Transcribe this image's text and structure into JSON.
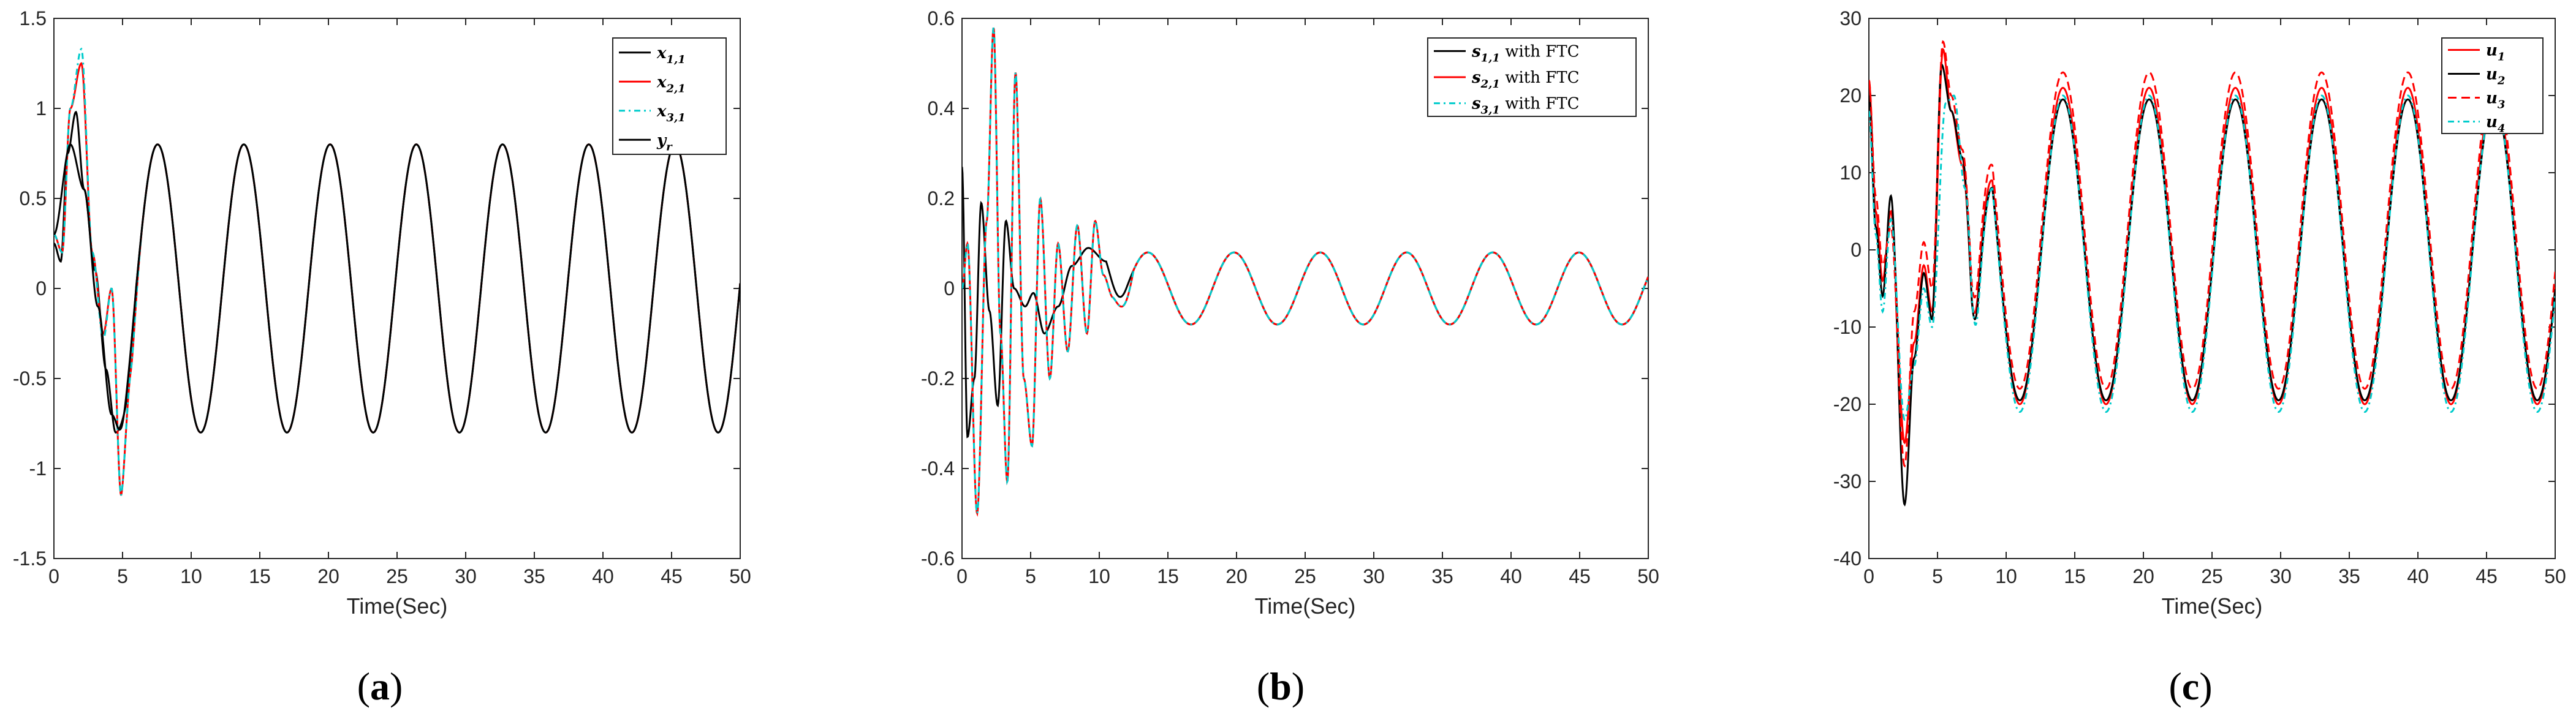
{
  "chart_data": [
    {
      "type": "line",
      "panel_label": "a",
      "xlabel": "Time(Sec)",
      "xlim": [
        0,
        50
      ],
      "ylim": [
        -1.5,
        1.5
      ],
      "xticks": [
        0,
        5,
        10,
        15,
        20,
        25,
        30,
        35,
        40,
        45,
        50
      ],
      "yticks": [
        -1.5,
        -1,
        -0.5,
        0,
        0.5,
        1,
        1.5
      ],
      "ytick_labels": [
        "-1.5",
        "-1",
        "-0.5",
        "0",
        "0.5",
        "1",
        "1.5"
      ],
      "legend_position": "top-right",
      "signal": {
        "kind": "sine",
        "amplitude": 0.8,
        "period": 6.283,
        "phase": 0.3,
        "decay": 0.7
      },
      "series": [
        {
          "name": "x",
          "sub": "1,1",
          "color": "#000000",
          "dash": "",
          "transient": [
            [
              0.0,
              0.25
            ],
            [
              0.5,
              0.15
            ],
            [
              1.0,
              0.75
            ],
            [
              1.6,
              0.98
            ],
            [
              2.2,
              0.55
            ],
            [
              3.0,
              0.1
            ],
            [
              3.8,
              -0.45
            ],
            [
              4.5,
              -0.8
            ],
            [
              5.2,
              -0.75
            ],
            [
              6.0,
              -0.2
            ]
          ]
        },
        {
          "name": "x",
          "sub": "2,1",
          "color": "#ff0000",
          "dash": "",
          "transient": [
            [
              0.0,
              0.3
            ],
            [
              0.6,
              0.2
            ],
            [
              1.2,
              1.0
            ],
            [
              2.0,
              1.25
            ],
            [
              2.8,
              0.2
            ],
            [
              3.6,
              -0.25
            ],
            [
              4.2,
              0.0
            ],
            [
              4.9,
              -1.15
            ],
            [
              5.6,
              -0.6
            ],
            [
              6.4,
              0.1
            ]
          ]
        },
        {
          "name": "x",
          "sub": "3,1",
          "color": "#00cccc",
          "dash": "10,6,3,6",
          "transient": [
            [
              0.0,
              0.3
            ],
            [
              0.6,
              0.2
            ],
            [
              1.2,
              1.0
            ],
            [
              2.0,
              1.33
            ],
            [
              2.8,
              0.2
            ],
            [
              3.6,
              -0.28
            ],
            [
              4.2,
              0.0
            ],
            [
              4.9,
              -1.15
            ],
            [
              5.6,
              -0.6
            ],
            [
              6.4,
              0.1
            ]
          ]
        },
        {
          "name": "y",
          "sub": "r",
          "color": "#000000",
          "dash": "",
          "transient": [
            [
              0.0,
              0.3
            ],
            [
              1.2,
              0.8
            ],
            [
              2.2,
              0.55
            ],
            [
              3.2,
              -0.1
            ],
            [
              4.2,
              -0.7
            ],
            [
              4.9,
              -0.8
            ],
            [
              6.0,
              -0.3
            ]
          ]
        }
      ]
    },
    {
      "type": "line",
      "panel_label": "b",
      "xlabel": "Time(Sec)",
      "xlim": [
        0,
        50
      ],
      "ylim": [
        -0.6,
        0.6
      ],
      "xticks": [
        0,
        5,
        10,
        15,
        20,
        25,
        30,
        35,
        40,
        45,
        50
      ],
      "yticks": [
        -0.6,
        -0.4,
        -0.2,
        0,
        0.2,
        0.4,
        0.6
      ],
      "ytick_labels": [
        "-0.6",
        "-0.4",
        "-0.2",
        "0",
        "0.2",
        "0.4",
        "0.6"
      ],
      "legend_position": "top-right",
      "signal": {
        "kind": "sine",
        "amplitude": 0.08,
        "period": 6.283,
        "phase": 0.6,
        "decay": 12.0
      },
      "series": [
        {
          "name": "s",
          "sub": "1,1",
          "suffix": " with FTC",
          "color": "#000000",
          "dash": "",
          "transient": [
            [
              0.0,
              0.27
            ],
            [
              0.4,
              -0.33
            ],
            [
              0.9,
              -0.2
            ],
            [
              1.4,
              0.19
            ],
            [
              2.0,
              -0.05
            ],
            [
              2.6,
              -0.26
            ],
            [
              3.2,
              0.15
            ],
            [
              3.8,
              0.0
            ],
            [
              4.6,
              -0.04
            ],
            [
              5.2,
              -0.01
            ],
            [
              6.0,
              -0.1
            ],
            [
              7.0,
              -0.04
            ],
            [
              8.0,
              0.05
            ],
            [
              9.2,
              0.09
            ],
            [
              10.5,
              0.06
            ],
            [
              12.0,
              0.0
            ]
          ]
        },
        {
          "name": "s",
          "sub": "2,1",
          "suffix": " with FTC",
          "color": "#ff0000",
          "dash": "",
          "transient": [
            [
              0.0,
              0.0
            ],
            [
              0.4,
              0.1
            ],
            [
              1.1,
              -0.5
            ],
            [
              1.8,
              0.15
            ],
            [
              2.3,
              0.58
            ],
            [
              2.8,
              -0.1
            ],
            [
              3.3,
              -0.43
            ],
            [
              3.9,
              0.48
            ],
            [
              4.5,
              -0.2
            ],
            [
              5.1,
              -0.35
            ],
            [
              5.7,
              0.2
            ],
            [
              6.4,
              -0.2
            ],
            [
              7.0,
              0.1
            ],
            [
              7.7,
              -0.14
            ],
            [
              8.4,
              0.14
            ],
            [
              9.1,
              -0.1
            ],
            [
              9.7,
              0.15
            ],
            [
              10.3,
              0.03
            ],
            [
              11.0,
              -0.02
            ],
            [
              12.5,
              -0.1
            ]
          ]
        },
        {
          "name": "s",
          "sub": "3,1",
          "suffix": " with FTC",
          "color": "#00cccc",
          "dash": "10,6,3,6",
          "transient": [
            [
              0.0,
              0.0
            ],
            [
              0.4,
              0.1
            ],
            [
              1.1,
              -0.5
            ],
            [
              1.8,
              0.15
            ],
            [
              2.3,
              0.58
            ],
            [
              2.8,
              -0.1
            ],
            [
              3.3,
              -0.43
            ],
            [
              3.9,
              0.48
            ],
            [
              4.5,
              -0.2
            ],
            [
              5.1,
              -0.35
            ],
            [
              5.7,
              0.2
            ],
            [
              6.4,
              -0.2
            ],
            [
              7.0,
              0.1
            ],
            [
              7.7,
              -0.14
            ],
            [
              8.4,
              0.14
            ],
            [
              9.1,
              -0.1
            ],
            [
              9.7,
              0.15
            ],
            [
              10.3,
              0.03
            ],
            [
              11.0,
              -0.02
            ],
            [
              12.5,
              -0.1
            ]
          ]
        }
      ]
    },
    {
      "type": "line",
      "panel_label": "c",
      "xlabel": "Time(Sec)",
      "xlim": [
        0,
        50
      ],
      "ylim": [
        -40,
        30
      ],
      "xticks": [
        0,
        5,
        10,
        15,
        20,
        25,
        30,
        35,
        40,
        45,
        50
      ],
      "yticks": [
        -40,
        -30,
        -20,
        -10,
        0,
        10,
        20,
        30
      ],
      "ytick_labels": [
        "-40",
        "-30",
        "-20",
        "-10",
        "0",
        "10",
        "20",
        "30"
      ],
      "legend_position": "top-right",
      "signal": {
        "kind": "sine",
        "amplitude": 19.5,
        "period": 6.283,
        "phase": 0.0,
        "decay": 8.0
      },
      "series": [
        {
          "name": "u",
          "sub": "1",
          "color": "#ff0000",
          "dash": "",
          "offset": 0.5,
          "amp": 20.5,
          "transient": [
            [
              0.0,
              22
            ],
            [
              0.5,
              5
            ],
            [
              1.0,
              -4
            ],
            [
              1.6,
              5
            ],
            [
              2.6,
              -25
            ],
            [
              3.3,
              -12
            ],
            [
              4.0,
              -2
            ],
            [
              4.6,
              -8
            ],
            [
              5.4,
              26
            ],
            [
              6.0,
              18
            ],
            [
              6.8,
              11
            ],
            [
              8.0,
              -17
            ],
            [
              9.0,
              -16
            ]
          ]
        },
        {
          "name": "u",
          "sub": "2",
          "color": "#000000",
          "dash": "",
          "offset": 0.0,
          "amp": 19.5,
          "transient": [
            [
              0.0,
              20
            ],
            [
              0.5,
              3
            ],
            [
              1.0,
              -6
            ],
            [
              1.6,
              7
            ],
            [
              2.6,
              -33
            ],
            [
              3.3,
              -14
            ],
            [
              4.0,
              -3
            ],
            [
              4.6,
              -9
            ],
            [
              5.3,
              24
            ],
            [
              6.0,
              18
            ],
            [
              6.8,
              12
            ],
            [
              8.0,
              -18
            ],
            [
              9.0,
              -17
            ]
          ]
        },
        {
          "name": "u",
          "sub": "3",
          "color": "#ff0000",
          "dash": "14,8",
          "offset": 2.5,
          "amp": 20.5,
          "transient": [
            [
              0.0,
              22
            ],
            [
              0.5,
              7
            ],
            [
              1.0,
              -2
            ],
            [
              1.6,
              3
            ],
            [
              2.6,
              -28
            ],
            [
              3.3,
              -8
            ],
            [
              4.0,
              1
            ],
            [
              4.6,
              -5
            ],
            [
              5.4,
              27
            ],
            [
              6.0,
              20
            ],
            [
              6.8,
              13
            ],
            [
              8.0,
              -15
            ],
            [
              9.0,
              -13
            ]
          ]
        },
        {
          "name": "u",
          "sub": "4",
          "color": "#00cccc",
          "dash": "10,6,3,6",
          "offset": -0.5,
          "amp": 20.5,
          "transient": [
            [
              0.0,
              18
            ],
            [
              0.5,
              2
            ],
            [
              1.0,
              -8
            ],
            [
              1.6,
              4
            ],
            [
              2.6,
              -22
            ],
            [
              3.3,
              -15
            ],
            [
              4.0,
              -5
            ],
            [
              4.6,
              -10
            ],
            [
              5.6,
              19
            ],
            [
              6.2,
              20
            ],
            [
              7.0,
              8
            ],
            [
              8.0,
              -20
            ],
            [
              9.0,
              -19
            ]
          ]
        }
      ]
    }
  ]
}
